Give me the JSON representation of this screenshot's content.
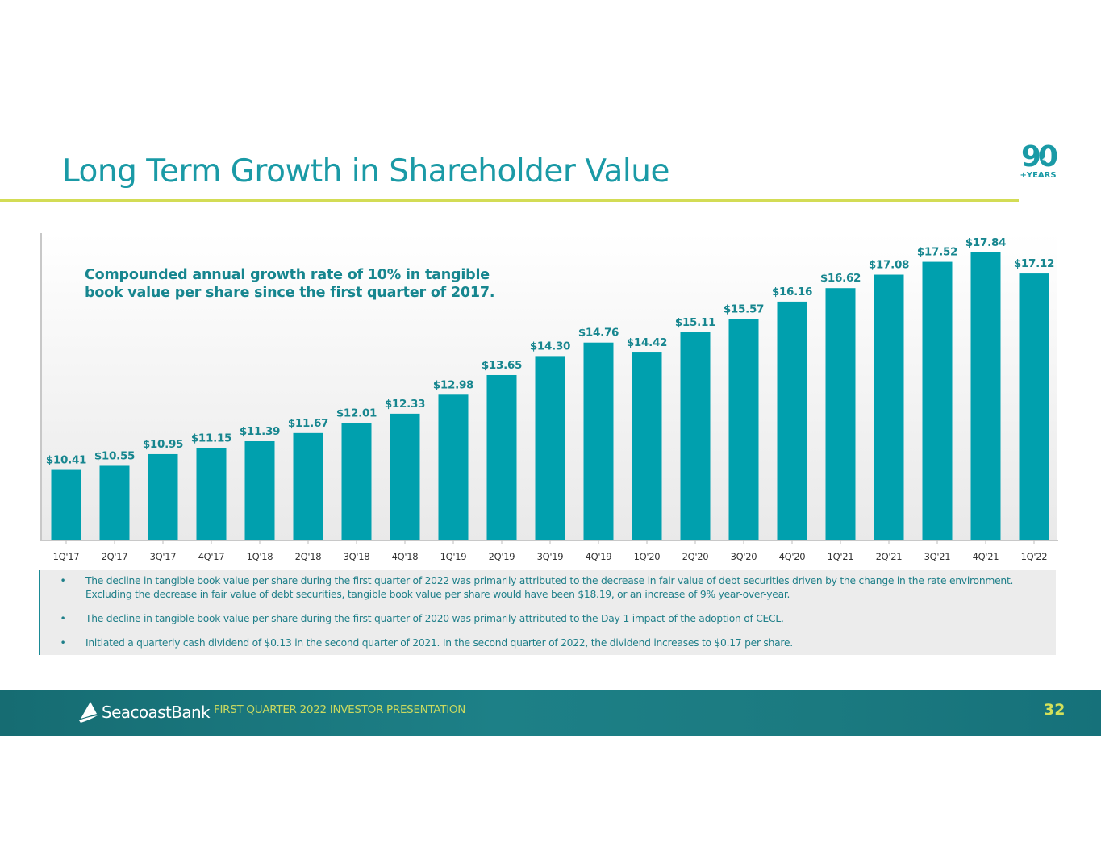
{
  "slide": {
    "title": "Long Term Growth in Shareholder Value",
    "logo_90": {
      "number": "90",
      "caption": "+YEARS"
    },
    "callout_line1": "Compounded annual growth rate of 10% in tangible",
    "callout_line2": "book value per share since the first quarter of 2017.",
    "notes": [
      {
        "bullet": "•",
        "text": "The decline in tangible book value per share during the first quarter of 2022 was primarily attributed to the decrease in fair value of debt securities driven by the change in the rate environment. Excluding the decrease in fair value of debt securities, tangible book value per share would have been $18.19, or an increase of 9% year-over-year."
      },
      {
        "bullet": "•",
        "text": "The decline in tangible book value per share during the first quarter of 2020 was primarily attributed to the Day-1 impact of the adoption of CECL."
      },
      {
        "bullet": "•",
        "text": "Initiated a quarterly cash dividend of $0.13 in the second quarter of 2021. In the second quarter of 2022, the dividend increases to $0.17 per share."
      }
    ],
    "footer": {
      "brand": "SeacoastBank",
      "presentation": "FIRST QUARTER 2022 INVESTOR PRESENTATION",
      "page_number": "32"
    },
    "colors": {
      "bar": "#00a0ae",
      "label": "#17868f",
      "title": "#1a9aa6",
      "accent_rule": "#d3dc55"
    }
  },
  "chart_data": {
    "type": "bar",
    "title": "",
    "xlabel": "",
    "ylabel": "Tangible book value per share",
    "categories": [
      "1Q'17",
      "2Q'17",
      "3Q'17",
      "4Q'17",
      "1Q'18",
      "2Q'18",
      "3Q'18",
      "4Q'18",
      "1Q'19",
      "2Q'19",
      "3Q'19",
      "4Q'19",
      "1Q'20",
      "2Q'20",
      "3Q'20",
      "4Q'20",
      "1Q'21",
      "2Q'21",
      "3Q'21",
      "4Q'21",
      "1Q'22"
    ],
    "values": [
      10.41,
      10.55,
      10.95,
      11.15,
      11.39,
      11.67,
      12.01,
      12.33,
      12.98,
      13.65,
      14.3,
      14.76,
      14.42,
      15.11,
      15.57,
      16.16,
      16.62,
      17.08,
      17.52,
      17.84,
      17.12
    ],
    "data_labels": [
      "$10.41",
      "$10.55",
      "$10.95",
      "$11.15",
      "$11.39",
      "$11.67",
      "$12.01",
      "$12.33",
      "$12.98",
      "$13.65",
      "$14.30",
      "$14.76",
      "$14.42",
      "$15.11",
      "$15.57",
      "$16.16",
      "$16.62",
      "$17.08",
      "$17.52",
      "$17.84",
      "$17.12"
    ],
    "ylim": [
      8,
      18.5
    ],
    "grid": false,
    "legend": "none",
    "annotation": "Compounded annual growth rate of 10% in tangible book value per share since the first quarter of 2017."
  }
}
